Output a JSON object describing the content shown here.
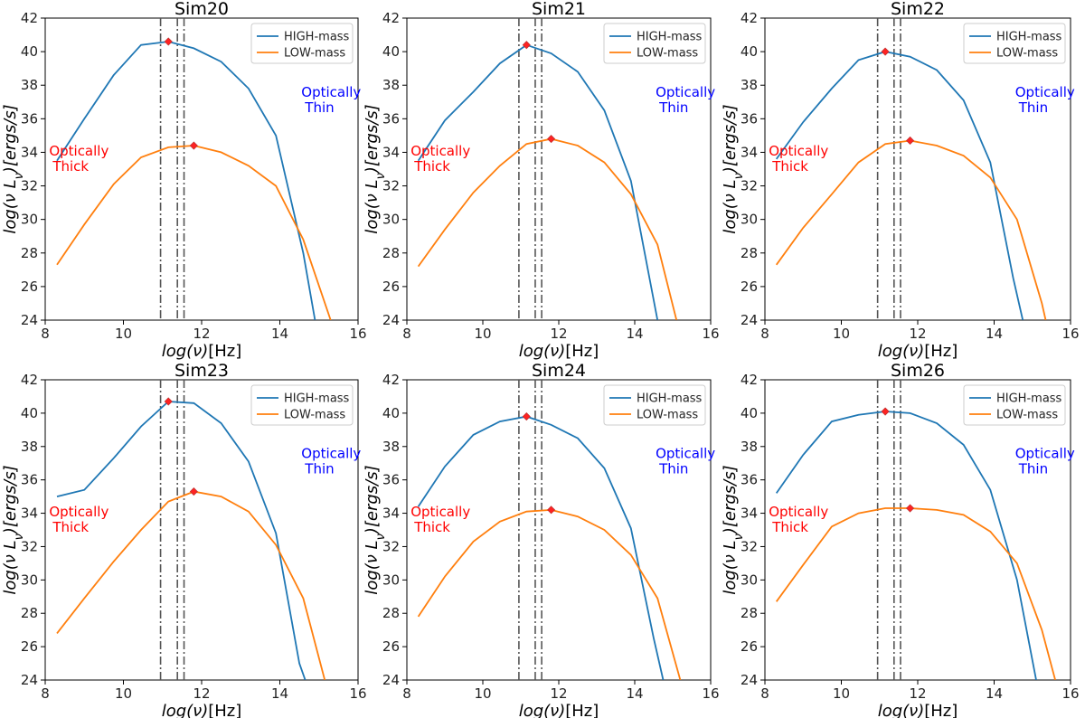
{
  "chart_data": [
    {
      "type": "line",
      "title": "Sim20",
      "xlabel": "log(ν)[Hz]",
      "ylabel": "log(ν L_ν)[ergs/s]",
      "xlim": [
        8,
        16
      ],
      "ylim": [
        24,
        42
      ],
      "xticks": [
        8,
        10,
        12,
        14,
        16
      ],
      "yticks": [
        24,
        26,
        28,
        30,
        32,
        34,
        36,
        38,
        40,
        42
      ],
      "legend": "top-right",
      "vlines": [
        10.95,
        11.38,
        11.55
      ],
      "annotations": [
        {
          "lines": [
            "Optically",
            "Thick"
          ],
          "x": 8.1,
          "y": 33.8,
          "color": "#ff0000"
        },
        {
          "lines": [
            "Optically",
            "Thin"
          ],
          "x": 14.55,
          "y": 37.3,
          "color": "#0000ff"
        }
      ],
      "series": [
        {
          "name": "HIGH-mass",
          "color": "#1f77b4",
          "x": [
            8.3,
            9.0,
            9.75,
            10.45,
            11.15,
            11.8,
            12.5,
            13.2,
            13.9,
            14.6,
            14.9
          ],
          "y": [
            33.5,
            36.0,
            38.6,
            40.4,
            40.6,
            40.2,
            39.4,
            37.8,
            35.0,
            28.0,
            24.0
          ],
          "peak": [
            11.15,
            40.6
          ]
        },
        {
          "name": "LOW-mass",
          "color": "#ff7f0e",
          "x": [
            8.3,
            9.0,
            9.75,
            10.45,
            11.15,
            11.8,
            12.5,
            13.2,
            13.9,
            14.6,
            15.3
          ],
          "y": [
            27.3,
            29.7,
            32.1,
            33.7,
            34.3,
            34.4,
            34.0,
            33.2,
            32.0,
            28.8,
            24.0
          ],
          "peak": [
            11.8,
            34.4
          ]
        }
      ]
    },
    {
      "type": "line",
      "title": "Sim21",
      "xlabel": "log(ν)[Hz]",
      "ylabel": "log(ν L_ν)[ergs/s]",
      "xlim": [
        8,
        16
      ],
      "ylim": [
        24,
        42
      ],
      "xticks": [
        8,
        10,
        12,
        14,
        16
      ],
      "yticks": [
        24,
        26,
        28,
        30,
        32,
        34,
        36,
        38,
        40,
        42
      ],
      "legend": "top-right",
      "vlines": [
        10.95,
        11.38,
        11.55
      ],
      "annotations": [
        {
          "lines": [
            "Optically",
            "Thick"
          ],
          "x": 8.1,
          "y": 33.8,
          "color": "#ff0000"
        },
        {
          "lines": [
            "Optically",
            "Thin"
          ],
          "x": 14.55,
          "y": 37.3,
          "color": "#0000ff"
        }
      ],
      "series": [
        {
          "name": "HIGH-mass",
          "color": "#1f77b4",
          "x": [
            8.3,
            9.0,
            9.75,
            10.45,
            11.15,
            11.8,
            12.5,
            13.2,
            13.9,
            14.6
          ],
          "y": [
            33.5,
            35.9,
            37.6,
            39.3,
            40.4,
            39.9,
            38.8,
            36.5,
            32.3,
            24.0
          ],
          "peak": [
            11.15,
            40.4
          ]
        },
        {
          "name": "LOW-mass",
          "color": "#ff7f0e",
          "x": [
            8.3,
            9.0,
            9.75,
            10.45,
            11.15,
            11.8,
            12.5,
            13.2,
            13.9,
            14.6,
            15.1
          ],
          "y": [
            27.2,
            29.4,
            31.6,
            33.2,
            34.5,
            34.8,
            34.4,
            33.4,
            31.5,
            28.5,
            24.0
          ],
          "peak": [
            11.8,
            34.8
          ]
        }
      ]
    },
    {
      "type": "line",
      "title": "Sim22",
      "xlabel": "log(ν)[Hz]",
      "ylabel": "log(ν L_ν)[ergs/s]",
      "xlim": [
        8,
        16
      ],
      "ylim": [
        24,
        42
      ],
      "xticks": [
        8,
        10,
        12,
        14,
        16
      ],
      "yticks": [
        24,
        26,
        28,
        30,
        32,
        34,
        36,
        38,
        40,
        42
      ],
      "legend": "top-right",
      "vlines": [
        10.95,
        11.38,
        11.55
      ],
      "annotations": [
        {
          "lines": [
            "Optically",
            "Thick"
          ],
          "x": 8.1,
          "y": 33.8,
          "color": "#ff0000"
        },
        {
          "lines": [
            "Optically",
            "Thin"
          ],
          "x": 14.55,
          "y": 37.3,
          "color": "#0000ff"
        }
      ],
      "series": [
        {
          "name": "HIGH-mass",
          "color": "#1f77b4",
          "x": [
            8.3,
            9.0,
            9.75,
            10.45,
            11.15,
            11.8,
            12.5,
            13.2,
            13.9,
            14.5,
            14.75
          ],
          "y": [
            33.6,
            35.8,
            37.8,
            39.5,
            40.0,
            39.7,
            38.9,
            37.1,
            33.4,
            26.5,
            24.0
          ],
          "peak": [
            11.15,
            40.0
          ]
        },
        {
          "name": "LOW-mass",
          "color": "#ff7f0e",
          "x": [
            8.3,
            9.0,
            9.75,
            10.45,
            11.15,
            11.8,
            12.5,
            13.2,
            13.9,
            14.6,
            15.25,
            15.35
          ],
          "y": [
            27.3,
            29.5,
            31.5,
            33.4,
            34.5,
            34.7,
            34.4,
            33.8,
            32.5,
            30.0,
            25.0,
            24.0
          ],
          "peak": [
            11.8,
            34.7
          ]
        }
      ]
    },
    {
      "type": "line",
      "title": "Sim23",
      "xlabel": "log(ν)[Hz]",
      "ylabel": "log(ν L_ν)[ergs/s]",
      "xlim": [
        8,
        16
      ],
      "ylim": [
        24,
        42
      ],
      "xticks": [
        8,
        10,
        12,
        14,
        16
      ],
      "yticks": [
        24,
        26,
        28,
        30,
        32,
        34,
        36,
        38,
        40,
        42
      ],
      "legend": "top-right",
      "vlines": [
        10.95,
        11.38,
        11.55
      ],
      "annotations": [
        {
          "lines": [
            "Optically",
            "Thick"
          ],
          "x": 8.1,
          "y": 33.8,
          "color": "#ff0000"
        },
        {
          "lines": [
            "Optically",
            "Thin"
          ],
          "x": 14.55,
          "y": 37.3,
          "color": "#0000ff"
        }
      ],
      "series": [
        {
          "name": "HIGH-mass",
          "color": "#1f77b4",
          "x": [
            8.3,
            9.0,
            9.75,
            10.45,
            11.15,
            11.8,
            12.5,
            13.2,
            13.9,
            14.5,
            14.65
          ],
          "y": [
            35.0,
            35.4,
            37.3,
            39.2,
            40.7,
            40.6,
            39.4,
            37.1,
            32.8,
            25.0,
            24.0
          ],
          "peak": [
            11.15,
            40.7
          ]
        },
        {
          "name": "LOW-mass",
          "color": "#ff7f0e",
          "x": [
            8.3,
            9.0,
            9.75,
            10.45,
            11.15,
            11.8,
            12.5,
            13.2,
            13.9,
            14.6,
            15.15
          ],
          "y": [
            26.8,
            28.9,
            31.1,
            33.0,
            34.7,
            35.3,
            35.0,
            34.1,
            32.1,
            28.9,
            24.0
          ],
          "peak": [
            11.8,
            35.3
          ]
        }
      ]
    },
    {
      "type": "line",
      "title": "Sim24",
      "xlabel": "log(ν)[Hz]",
      "ylabel": "log(ν L_ν)[ergs/s]",
      "xlim": [
        8,
        16
      ],
      "ylim": [
        24,
        42
      ],
      "xticks": [
        8,
        10,
        12,
        14,
        16
      ],
      "yticks": [
        24,
        26,
        28,
        30,
        32,
        34,
        36,
        38,
        40,
        42
      ],
      "legend": "top-right",
      "vlines": [
        10.95,
        11.38,
        11.55
      ],
      "annotations": [
        {
          "lines": [
            "Optically",
            "Thick"
          ],
          "x": 8.1,
          "y": 33.8,
          "color": "#ff0000"
        },
        {
          "lines": [
            "Optically",
            "Thin"
          ],
          "x": 14.55,
          "y": 37.3,
          "color": "#0000ff"
        }
      ],
      "series": [
        {
          "name": "HIGH-mass",
          "color": "#1f77b4",
          "x": [
            8.3,
            9.0,
            9.75,
            10.45,
            11.15,
            11.8,
            12.5,
            13.2,
            13.9,
            14.5,
            14.75
          ],
          "y": [
            34.4,
            36.8,
            38.7,
            39.5,
            39.8,
            39.3,
            38.5,
            36.7,
            33.1,
            26.5,
            24.0
          ],
          "peak": [
            11.15,
            39.8
          ]
        },
        {
          "name": "LOW-mass",
          "color": "#ff7f0e",
          "x": [
            8.3,
            9.0,
            9.75,
            10.45,
            11.15,
            11.8,
            12.5,
            13.2,
            13.9,
            14.6,
            15.2
          ],
          "y": [
            27.8,
            30.2,
            32.3,
            33.5,
            34.1,
            34.2,
            33.8,
            33.0,
            31.5,
            28.9,
            24.0
          ],
          "peak": [
            11.8,
            34.2
          ]
        }
      ]
    },
    {
      "type": "line",
      "title": "Sim26",
      "xlabel": "log(ν)[Hz]",
      "ylabel": "log(ν L_ν)[ergs/s]",
      "xlim": [
        8,
        16
      ],
      "ylim": [
        24,
        42
      ],
      "xticks": [
        8,
        10,
        12,
        14,
        16
      ],
      "yticks": [
        24,
        26,
        28,
        30,
        32,
        34,
        36,
        38,
        40,
        42
      ],
      "legend": "top-right",
      "vlines": [
        10.95,
        11.38,
        11.55
      ],
      "annotations": [
        {
          "lines": [
            "Optically",
            "Thick"
          ],
          "x": 8.1,
          "y": 33.8,
          "color": "#ff0000"
        },
        {
          "lines": [
            "Optically",
            "Thin"
          ],
          "x": 14.55,
          "y": 37.3,
          "color": "#0000ff"
        }
      ],
      "series": [
        {
          "name": "HIGH-mass",
          "color": "#1f77b4",
          "x": [
            8.3,
            9.0,
            9.75,
            10.45,
            11.15,
            11.8,
            12.5,
            13.2,
            13.9,
            14.6,
            15.1
          ],
          "y": [
            35.2,
            37.5,
            39.5,
            39.9,
            40.1,
            40.0,
            39.4,
            38.1,
            35.4,
            30.0,
            24.0
          ],
          "peak": [
            11.15,
            40.1
          ]
        },
        {
          "name": "LOW-mass",
          "color": "#ff7f0e",
          "x": [
            8.3,
            9.0,
            9.75,
            10.45,
            11.15,
            11.8,
            12.5,
            13.2,
            13.9,
            14.6,
            15.25,
            15.6
          ],
          "y": [
            28.7,
            30.9,
            33.2,
            34.0,
            34.3,
            34.3,
            34.2,
            33.9,
            32.9,
            31.0,
            27.0,
            24.0
          ],
          "peak": [
            11.8,
            34.3
          ]
        }
      ]
    }
  ]
}
